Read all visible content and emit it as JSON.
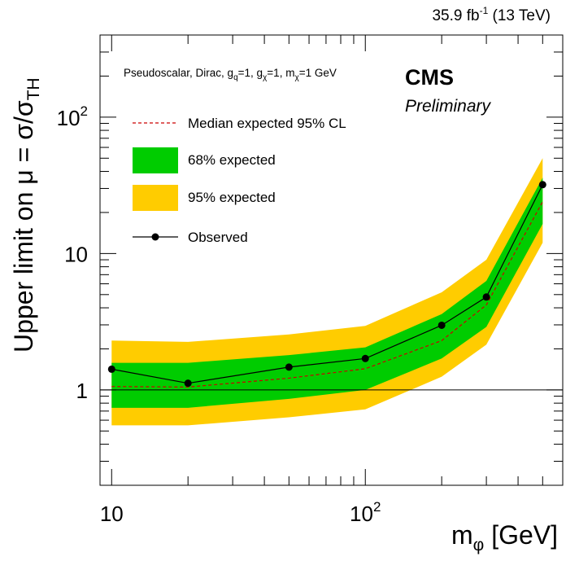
{
  "chart_data": {
    "type": "line",
    "x": [
      10,
      20,
      50,
      100,
      200,
      300,
      500
    ],
    "xscale": "log",
    "yscale": "log",
    "xlim": [
      9,
      600
    ],
    "ylim": [
      0.2,
      400
    ],
    "x_ticks": [
      {
        "value": 10,
        "base": "10",
        "exp": ""
      },
      {
        "value": 100,
        "base": "10",
        "exp": "2"
      }
    ],
    "y_ticks": [
      {
        "value": 1,
        "base": "1",
        "exp": ""
      },
      {
        "value": 10,
        "base": "10",
        "exp": ""
      },
      {
        "value": 100,
        "base": "10",
        "exp": "2"
      }
    ],
    "reference_line": 1,
    "series": [
      {
        "name": "Observed",
        "values": [
          1.42,
          1.12,
          1.47,
          1.7,
          2.98,
          4.8,
          32.0
        ]
      },
      {
        "name": "Median expected 95% CL",
        "values": [
          1.06,
          1.05,
          1.22,
          1.43,
          2.3,
          4.2,
          24.0
        ]
      }
    ],
    "band_68": {
      "name": "68% expected",
      "low": [
        0.74,
        0.74,
        0.86,
        1.0,
        1.7,
        2.9,
        16.5
      ],
      "high": [
        1.58,
        1.58,
        1.8,
        2.05,
        3.6,
        6.3,
        36.0
      ]
    },
    "band_95": {
      "name": "95% expected",
      "low": [
        0.55,
        0.55,
        0.63,
        0.72,
        1.25,
        2.15,
        12.0
      ],
      "high": [
        2.3,
        2.25,
        2.55,
        2.95,
        5.2,
        9.0,
        50.0
      ]
    },
    "colors": {
      "band_68": "#00cc00",
      "band_95": "#ffcc00",
      "observed": "#000000",
      "expected": "#cc0000"
    },
    "legend_position": "top-left",
    "grid": false,
    "text": {
      "lumi": "35.9 fb",
      "lumi_exp": "-1",
      "lumi_energy": " (13 TeV)",
      "model_parts": [
        {
          "t": "Pseudoscalar, Dirac, g",
          "s": ""
        },
        {
          "t": "q",
          "s": "sub"
        },
        {
          "t": "=1, g",
          "s": ""
        },
        {
          "t": "χ",
          "s": "sub"
        },
        {
          "t": "=1, m",
          "s": ""
        },
        {
          "t": "χ",
          "s": "sub"
        },
        {
          "t": "=1 GeV",
          "s": ""
        }
      ],
      "experiment": "CMS",
      "status": "Preliminary",
      "ylabel_main": "Upper limit on μ = σ/σ",
      "ylabel_sub": "TH",
      "xlabel_main": "m",
      "xlabel_sub": "φ",
      "xlabel_unit": " [GeV]"
    }
  }
}
